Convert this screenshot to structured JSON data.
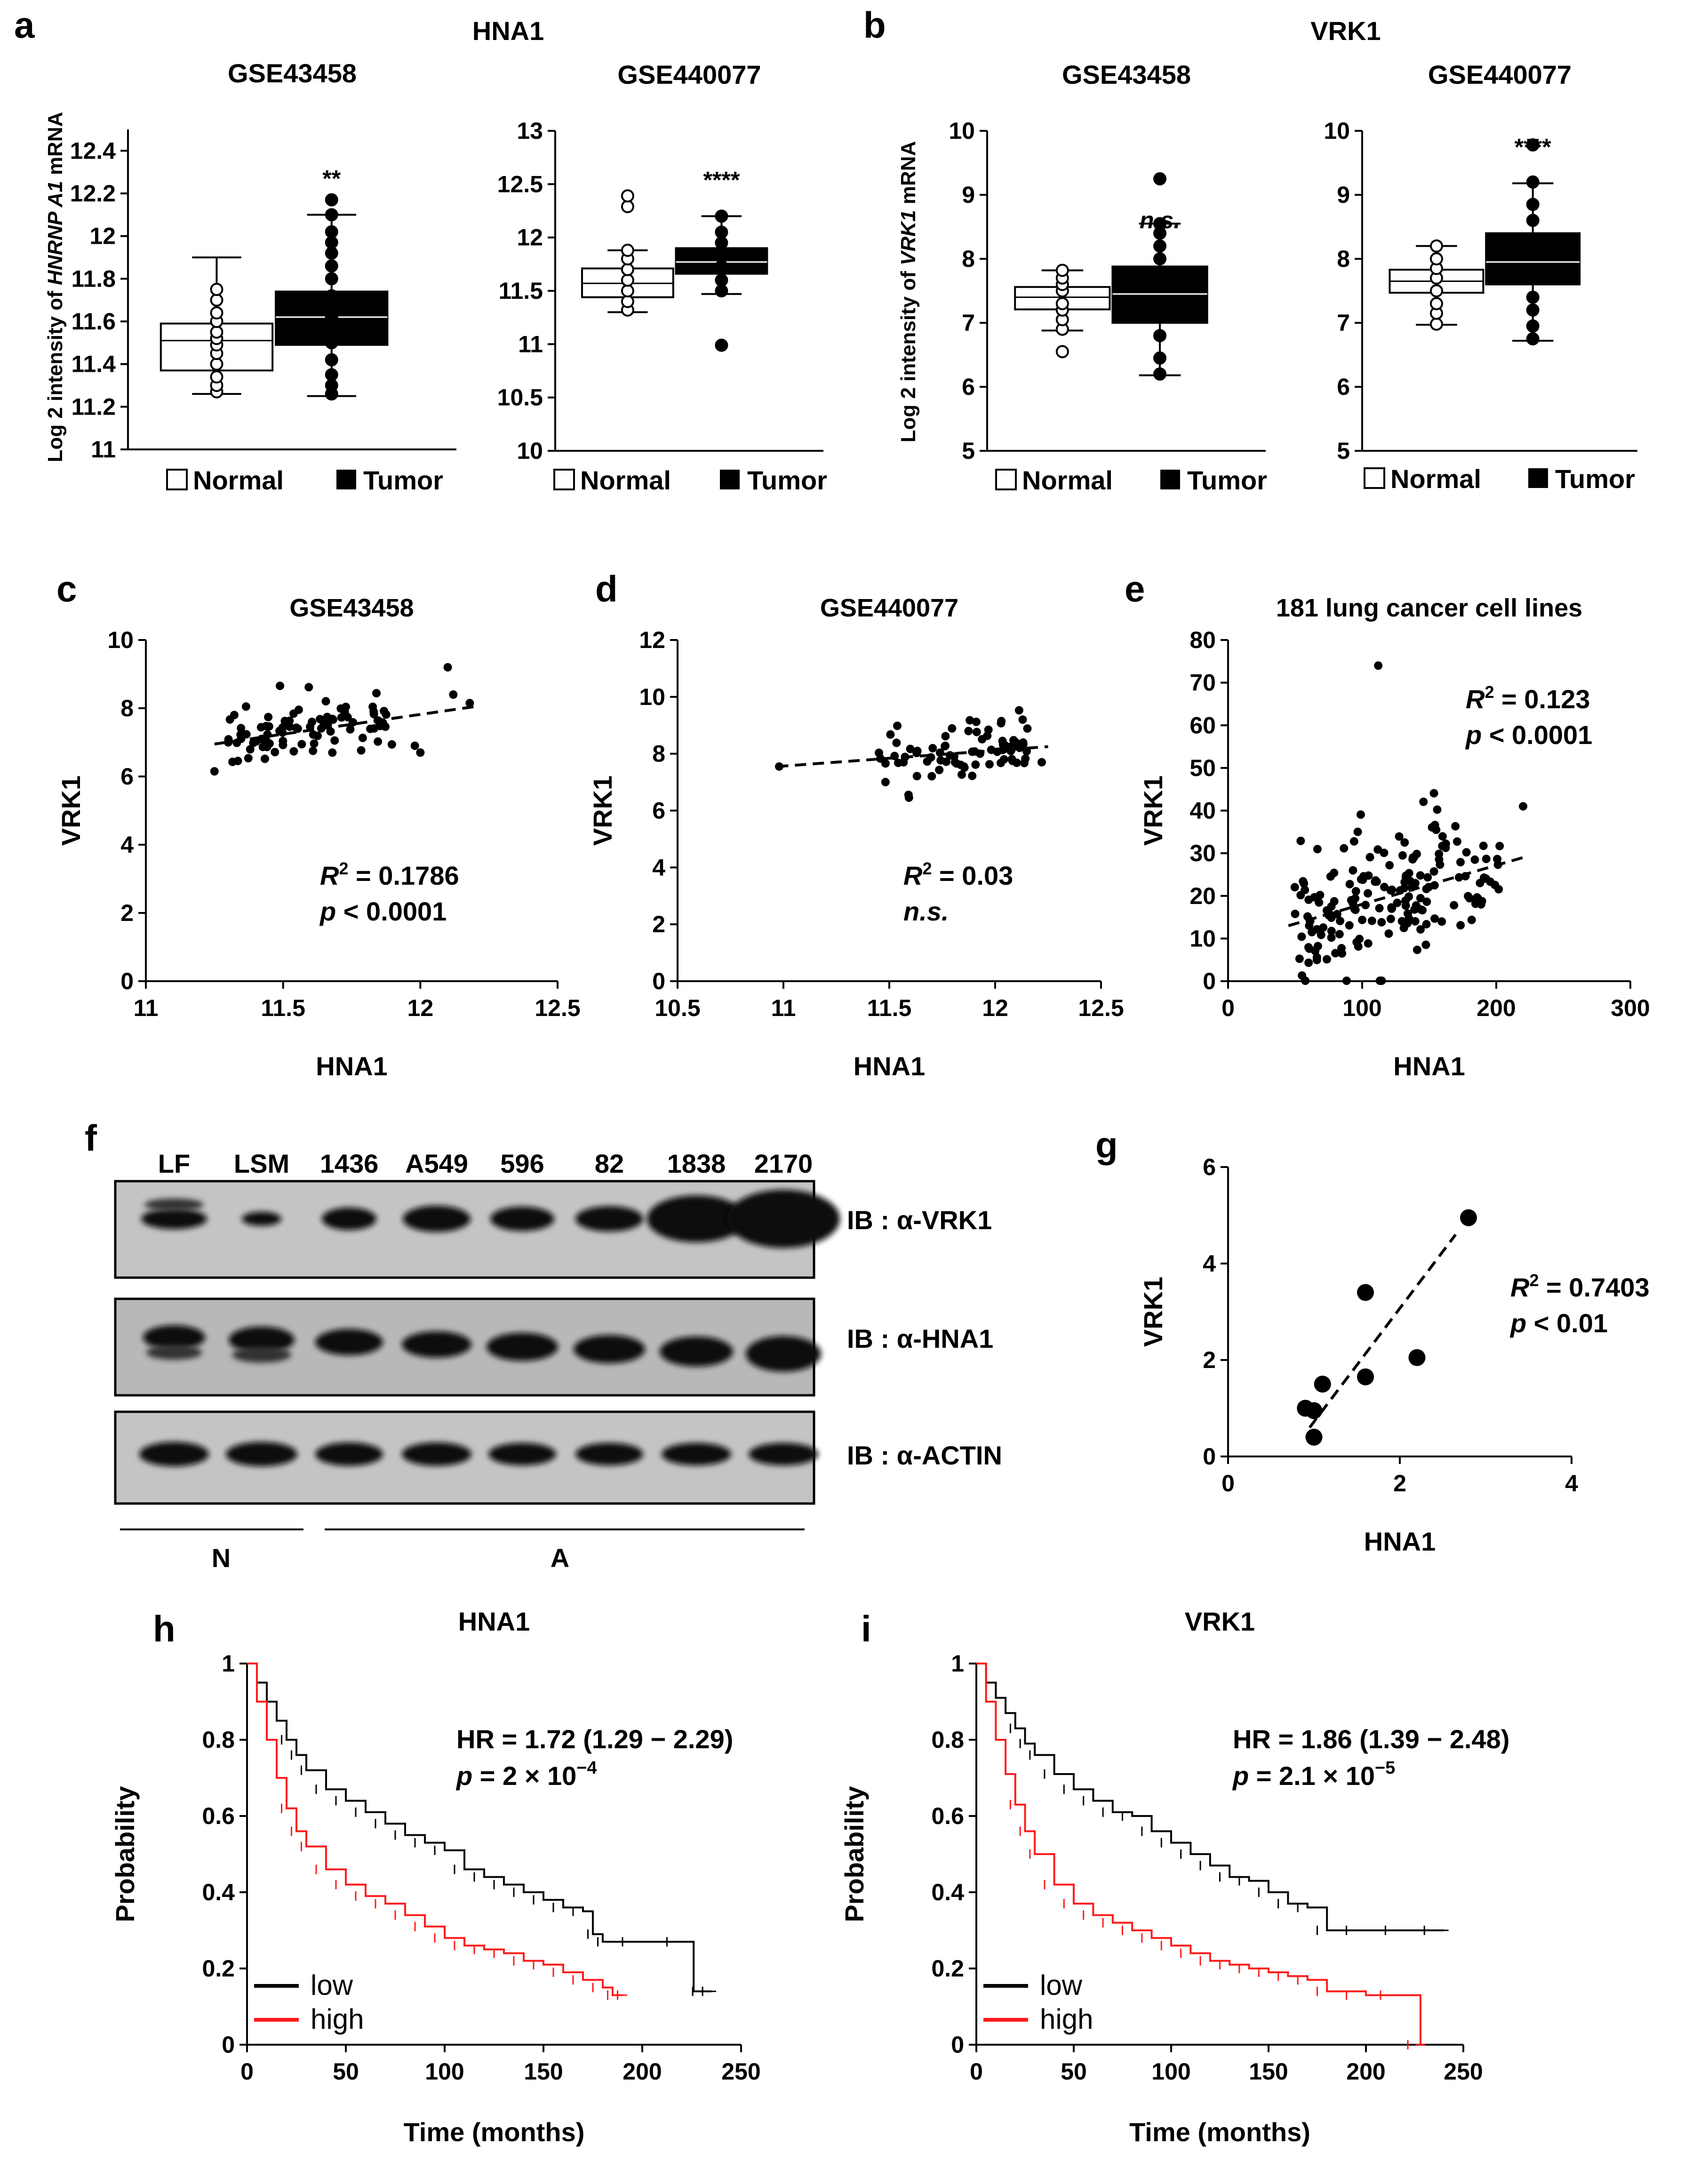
{
  "panels": {
    "a": {
      "letter": "a",
      "group_title": "HNA1",
      "ylabel_pre": "Log 2 intensity of ",
      "ylabel_gene": "HNRNP A1",
      "ylabel_post": " mRNA"
    },
    "b": {
      "letter": "b",
      "group_title": "VRK1",
      "ylabel_pre": "Log 2 intensity of ",
      "ylabel_gene": "VRK1",
      "ylabel_post": " mRNA"
    },
    "c": {
      "letter": "c"
    },
    "d": {
      "letter": "d"
    },
    "e": {
      "letter": "e"
    },
    "f": {
      "letter": "f"
    },
    "g": {
      "letter": "g"
    },
    "h": {
      "letter": "h"
    },
    "i": {
      "letter": "i"
    }
  },
  "legend_box": {
    "normal": "Normal",
    "tumor": "Tumor"
  },
  "colors": {
    "low": "#000000",
    "high": "#ff1a1a",
    "tumor": "#000000",
    "normal": "#ffffff"
  },
  "chart_data": [
    {
      "id": "a1",
      "type": "box",
      "title": "GSE43458",
      "significance": "**",
      "yticks": [
        "11",
        "11.2",
        "11.4",
        "11.6",
        "11.8",
        "12",
        "12.2",
        "12.4"
      ],
      "ylim": [
        11,
        12.5
      ],
      "boxes": [
        {
          "name": "Normal",
          "min": 11.26,
          "q1": 11.37,
          "median": 11.51,
          "q3": 11.59,
          "max": 11.9,
          "points": [
            11.27,
            11.3,
            11.34,
            11.4,
            11.45,
            11.49,
            11.52,
            11.55,
            11.6,
            11.64,
            11.7,
            11.75
          ]
        },
        {
          "name": "Tumor",
          "min": 11.25,
          "q1": 11.49,
          "median": 11.62,
          "q3": 11.74,
          "max": 12.1,
          "points": [
            11.26,
            11.3,
            11.35,
            11.42,
            11.5,
            11.62,
            11.72,
            11.8,
            11.86,
            11.92,
            11.97,
            12.02,
            12.1,
            12.17
          ]
        }
      ]
    },
    {
      "id": "a2",
      "type": "box",
      "title": "GSE440077",
      "significance": "****",
      "yticks": [
        "10",
        "10.5",
        "11",
        "11.5",
        "12",
        "12.5",
        "13"
      ],
      "ylim": [
        10,
        13
      ],
      "boxes": [
        {
          "name": "Normal",
          "min": 11.3,
          "q1": 11.44,
          "median": 11.57,
          "q3": 11.71,
          "max": 11.88,
          "points": [
            11.32,
            11.4,
            11.5,
            11.6,
            11.7,
            11.8,
            11.88,
            12.29,
            12.39
          ]
        },
        {
          "name": "Tumor",
          "min": 11.47,
          "q1": 11.66,
          "median": 11.77,
          "q3": 11.9,
          "max": 12.2,
          "points": [
            11.5,
            11.6,
            11.73,
            11.85,
            11.95,
            12.05,
            12.2,
            10.99
          ]
        }
      ]
    },
    {
      "id": "b1",
      "type": "box",
      "title": "GSE43458",
      "significance": "n.s.",
      "yticks": [
        "5",
        "6",
        "7",
        "8",
        "9",
        "10"
      ],
      "ylim": [
        5,
        10
      ],
      "boxes": [
        {
          "name": "Normal",
          "min": 6.88,
          "q1": 7.21,
          "median": 7.4,
          "q3": 7.56,
          "max": 7.82,
          "points": [
            6.55,
            6.9,
            7.05,
            7.2,
            7.3,
            7.5,
            7.6,
            7.7,
            7.82
          ]
        },
        {
          "name": "Tumor",
          "min": 6.18,
          "q1": 7.0,
          "median": 7.45,
          "q3": 7.88,
          "max": 8.55,
          "points": [
            6.2,
            6.45,
            6.8,
            7.2,
            7.6,
            8.0,
            8.2,
            8.4,
            8.55,
            9.25
          ]
        }
      ]
    },
    {
      "id": "b2",
      "type": "box",
      "title": "GSE440077",
      "significance": "****",
      "yticks": [
        "5",
        "6",
        "7",
        "8",
        "9",
        "10"
      ],
      "ylim": [
        5,
        10
      ],
      "boxes": [
        {
          "name": "Normal",
          "min": 6.97,
          "q1": 7.47,
          "median": 7.65,
          "q3": 7.83,
          "max": 8.2,
          "points": [
            6.98,
            7.15,
            7.3,
            7.5,
            7.7,
            7.85,
            8.0,
            8.2
          ]
        },
        {
          "name": "Tumor",
          "min": 6.72,
          "q1": 7.6,
          "median": 7.95,
          "q3": 8.4,
          "max": 9.18,
          "points": [
            6.75,
            6.95,
            7.2,
            7.4,
            8.6,
            8.85,
            9.2,
            9.78
          ]
        }
      ]
    },
    {
      "id": "c",
      "type": "scatter",
      "title": "GSE43458",
      "xlabel": "HNA1",
      "ylabel": "VRK1",
      "xlim": [
        11,
        12.5
      ],
      "ylim": [
        0,
        10
      ],
      "xticks": [
        "11",
        "11.5",
        "12",
        "12.5"
      ],
      "yticks": [
        "0",
        "2",
        "4",
        "6",
        "8",
        "10"
      ],
      "r2_value": "= 0.1786",
      "p_label": "< 0.0001",
      "trend": [
        [
          11.25,
          6.95
        ],
        [
          12.2,
          8.05
        ]
      ]
    },
    {
      "id": "d",
      "type": "scatter",
      "title": "GSE440077",
      "xlabel": "HNA1",
      "ylabel": "VRK1",
      "xlim": [
        10.5,
        12.5
      ],
      "ylim": [
        0,
        12
      ],
      "xticks": [
        "10.5",
        "11",
        "11.5",
        "12",
        "12.5"
      ],
      "yticks": [
        "0",
        "2",
        "4",
        "6",
        "8",
        "10",
        "12"
      ],
      "r2_value": "= 0.03",
      "p_label": "n.s.",
      "trend": [
        [
          10.97,
          7.55
        ],
        [
          12.25,
          8.25
        ]
      ]
    },
    {
      "id": "e",
      "type": "scatter",
      "title": "181 lung cancer cell lines",
      "xlabel": "HNA1",
      "ylabel": "VRK1",
      "xlim": [
        0,
        300
      ],
      "ylim": [
        0,
        80
      ],
      "xticks": [
        "0",
        "100",
        "200",
        "300"
      ],
      "yticks": [
        "0",
        "10",
        "20",
        "30",
        "40",
        "50",
        "60",
        "70",
        "80"
      ],
      "r2_value": "= 0.123",
      "p_label": "< 0.0001",
      "trend": [
        [
          45,
          13
        ],
        [
          220,
          29
        ]
      ]
    },
    {
      "id": "g",
      "type": "scatter",
      "xlabel": "HNA1",
      "ylabel": "VRK1",
      "xlim": [
        0,
        4
      ],
      "ylim": [
        0,
        6
      ],
      "xticks": [
        "0",
        "2",
        "4"
      ],
      "yticks": [
        "0",
        "2",
        "4",
        "6"
      ],
      "r2_value": "= 0.7403",
      "p_label": "< 0.01",
      "points": [
        [
          0.9,
          1.0
        ],
        [
          1.0,
          0.95
        ],
        [
          1.0,
          0.4
        ],
        [
          1.1,
          1.5
        ],
        [
          1.6,
          3.4
        ],
        [
          1.6,
          1.65
        ],
        [
          2.2,
          2.05
        ],
        [
          2.8,
          4.95
        ]
      ],
      "trend": [
        [
          0.95,
          0.6
        ],
        [
          2.65,
          4.6
        ]
      ]
    },
    {
      "id": "h",
      "type": "line",
      "title": "HNA1",
      "xlabel": "Time (months)",
      "ylabel": "Probability",
      "xlim": [
        0,
        250
      ],
      "ylim": [
        0,
        1
      ],
      "xticks": [
        "0",
        "50",
        "100",
        "150",
        "200",
        "250"
      ],
      "yticks": [
        "0",
        "0.2",
        "0.4",
        "0.6",
        "0.8",
        "1"
      ],
      "hr_text": "HR = 1.72 (1.29 − 2.29)",
      "p_pre": "= 2 × 10",
      "p_exp": "−4",
      "series": [
        {
          "name": "low",
          "color": "#000000",
          "x": [
            0,
            5,
            10,
            15,
            20,
            25,
            30,
            40,
            50,
            60,
            70,
            80,
            90,
            100,
            110,
            120,
            130,
            140,
            150,
            160,
            170,
            175,
            180,
            200,
            225,
            226,
            235
          ],
          "y": [
            1,
            0.95,
            0.9,
            0.85,
            0.8,
            0.76,
            0.72,
            0.67,
            0.64,
            0.61,
            0.58,
            0.55,
            0.53,
            0.51,
            0.46,
            0.44,
            0.42,
            0.4,
            0.38,
            0.36,
            0.35,
            0.29,
            0.27,
            0.27,
            0.27,
            0.14,
            0.14
          ]
        },
        {
          "name": "high",
          "color": "#ff1a1a",
          "x": [
            0,
            5,
            10,
            15,
            20,
            25,
            30,
            40,
            50,
            60,
            70,
            80,
            90,
            100,
            110,
            120,
            130,
            140,
            150,
            160,
            170,
            180,
            185,
            190
          ],
          "y": [
            1,
            0.9,
            0.8,
            0.7,
            0.62,
            0.56,
            0.52,
            0.46,
            0.42,
            0.39,
            0.37,
            0.34,
            0.31,
            0.28,
            0.26,
            0.25,
            0.24,
            0.22,
            0.21,
            0.19,
            0.17,
            0.15,
            0.13,
            0.13
          ]
        }
      ]
    },
    {
      "id": "i",
      "type": "line",
      "title": "VRK1",
      "xlabel": "Time (months)",
      "ylabel": "Probability",
      "xlim": [
        0,
        250
      ],
      "ylim": [
        0,
        1
      ],
      "xticks": [
        "0",
        "50",
        "100",
        "150",
        "200",
        "250"
      ],
      "yticks": [
        "0",
        "0.2",
        "0.4",
        "0.6",
        "0.8",
        "1"
      ],
      "hr_text": "HR = 1.86 (1.39 − 2.48)",
      "p_pre": "= 2.1 × 10",
      "p_exp": "−5",
      "series": [
        {
          "name": "low",
          "color": "#000000",
          "x": [
            0,
            5,
            10,
            15,
            20,
            25,
            30,
            40,
            50,
            60,
            70,
            80,
            90,
            100,
            110,
            120,
            130,
            140,
            150,
            160,
            170,
            180,
            200,
            220,
            240
          ],
          "y": [
            1,
            0.95,
            0.91,
            0.87,
            0.83,
            0.79,
            0.76,
            0.71,
            0.67,
            0.64,
            0.61,
            0.6,
            0.56,
            0.53,
            0.5,
            0.47,
            0.44,
            0.43,
            0.4,
            0.37,
            0.36,
            0.3,
            0.3,
            0.3,
            0.3
          ]
        },
        {
          "name": "high",
          "color": "#ff1a1a",
          "x": [
            0,
            5,
            10,
            15,
            20,
            25,
            30,
            40,
            50,
            60,
            70,
            80,
            90,
            100,
            110,
            120,
            130,
            140,
            150,
            160,
            170,
            180,
            200,
            215,
            228
          ],
          "y": [
            1,
            0.9,
            0.8,
            0.71,
            0.63,
            0.56,
            0.5,
            0.42,
            0.37,
            0.34,
            0.32,
            0.3,
            0.28,
            0.26,
            0.24,
            0.22,
            0.21,
            0.2,
            0.19,
            0.18,
            0.17,
            0.14,
            0.13,
            0.13,
            0
          ]
        }
      ]
    }
  ],
  "western_blot": {
    "lanes": [
      "LF",
      "LSM",
      "1436",
      "A549",
      "596",
      "82",
      "1838",
      "2170"
    ],
    "blots": [
      "IB : α-VRK1",
      "IB : α-HNA1",
      "IB : α-ACTIN"
    ],
    "groups": [
      "N",
      "A"
    ]
  }
}
